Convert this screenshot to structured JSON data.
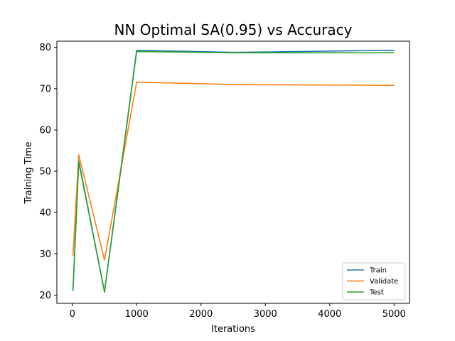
{
  "chart_data": {
    "type": "line",
    "title": "NN Optimal SA(0.95) vs Accuracy",
    "xlabel": "Iterations",
    "ylabel": "Training Time",
    "x": [
      10,
      100,
      500,
      1000,
      2500,
      5000
    ],
    "series": [
      {
        "name": "Train",
        "color": "#1f77b4",
        "values": [
          21.1,
          52.6,
          20.8,
          79.3,
          78.8,
          79.3
        ]
      },
      {
        "name": "Validate",
        "color": "#ff7f0e",
        "values": [
          29.5,
          54.0,
          28.5,
          71.6,
          71.0,
          70.8
        ]
      },
      {
        "name": "Test",
        "color": "#2ca02c",
        "values": [
          21.0,
          52.2,
          20.7,
          79.0,
          78.7,
          78.7
        ]
      }
    ],
    "xlim": [
      -240,
      5240
    ],
    "ylim": [
      18.0,
      81.5
    ],
    "xticks": [
      0,
      1000,
      2000,
      3000,
      4000,
      5000
    ],
    "yticks": [
      20,
      30,
      40,
      50,
      60,
      70,
      80
    ],
    "grid": false,
    "legend_position": "lower-right"
  }
}
